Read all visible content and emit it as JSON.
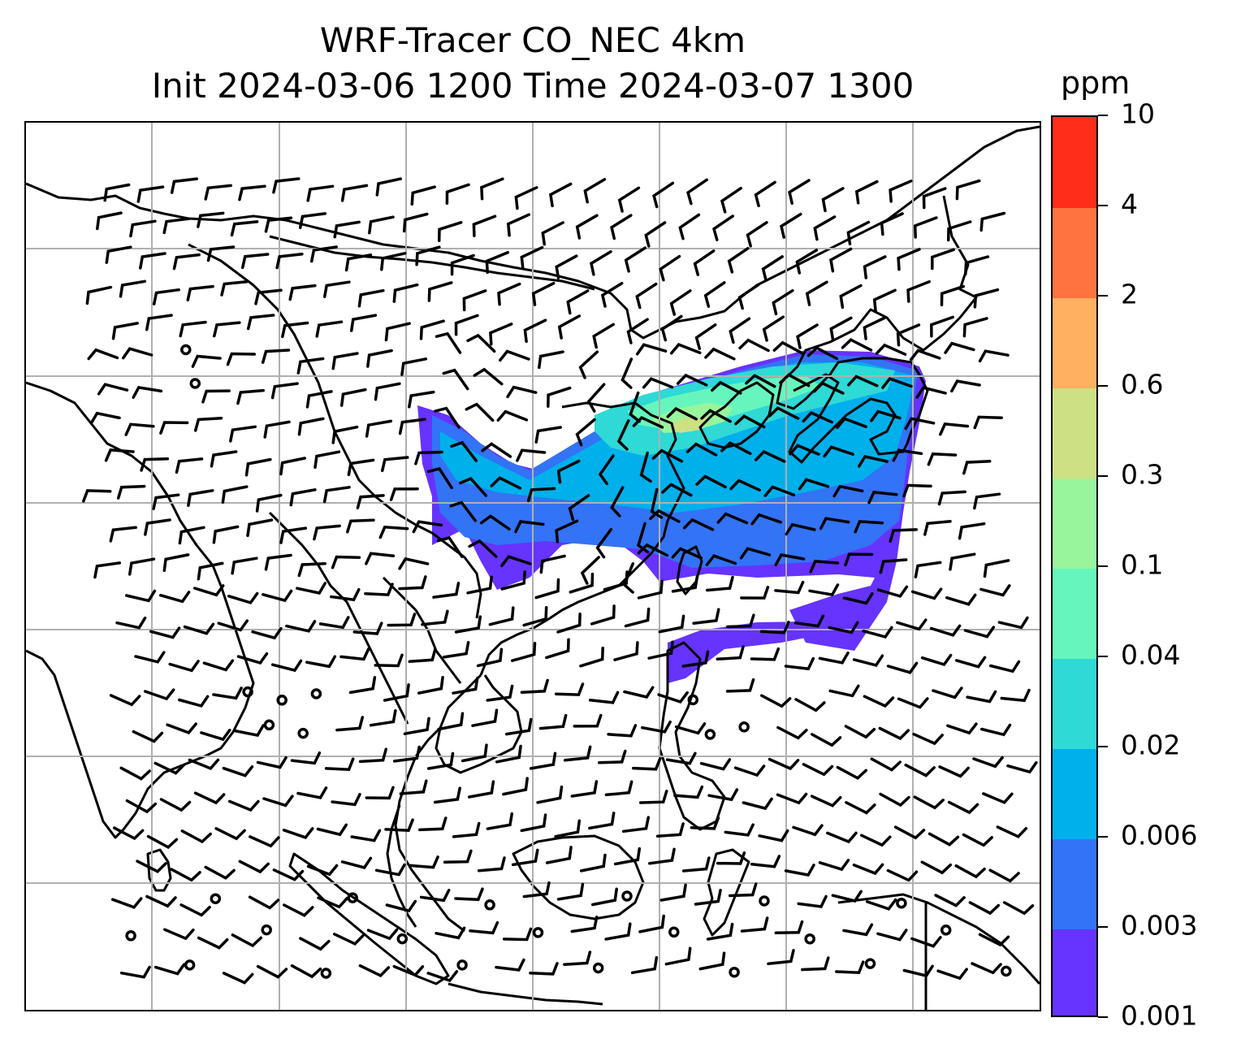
{
  "title": {
    "line1": "WRF-Tracer CO_NEC 4km",
    "line2": "Init 2024-03-06 1200 Time 2024-03-07 1300"
  },
  "colorbar": {
    "unit": "ppm",
    "levels": [
      {
        "label": "0.001",
        "color": "#6633ff"
      },
      {
        "label": "0.003",
        "color": "#3373f5"
      },
      {
        "label": "0.006",
        "color": "#00b0eb"
      },
      {
        "label": "0.02",
        "color": "#2ed9d6"
      },
      {
        "label": "0.04",
        "color": "#66f6bd"
      },
      {
        "label": "0.1",
        "color": "#99f59c"
      },
      {
        "label": "0.3",
        "color": "#cde083"
      },
      {
        "label": "0.6",
        "color": "#ffb060"
      },
      {
        "label": "2",
        "color": "#ff733e"
      },
      {
        "label": "4",
        "color": "#ff2d1a"
      },
      {
        "label": "10",
        "color": ""
      }
    ]
  },
  "map": {
    "gridlines": "on",
    "gridline_color": "#b0b0b0",
    "coastline_color": "#000000",
    "wind_barb_color": "#000000"
  }
}
